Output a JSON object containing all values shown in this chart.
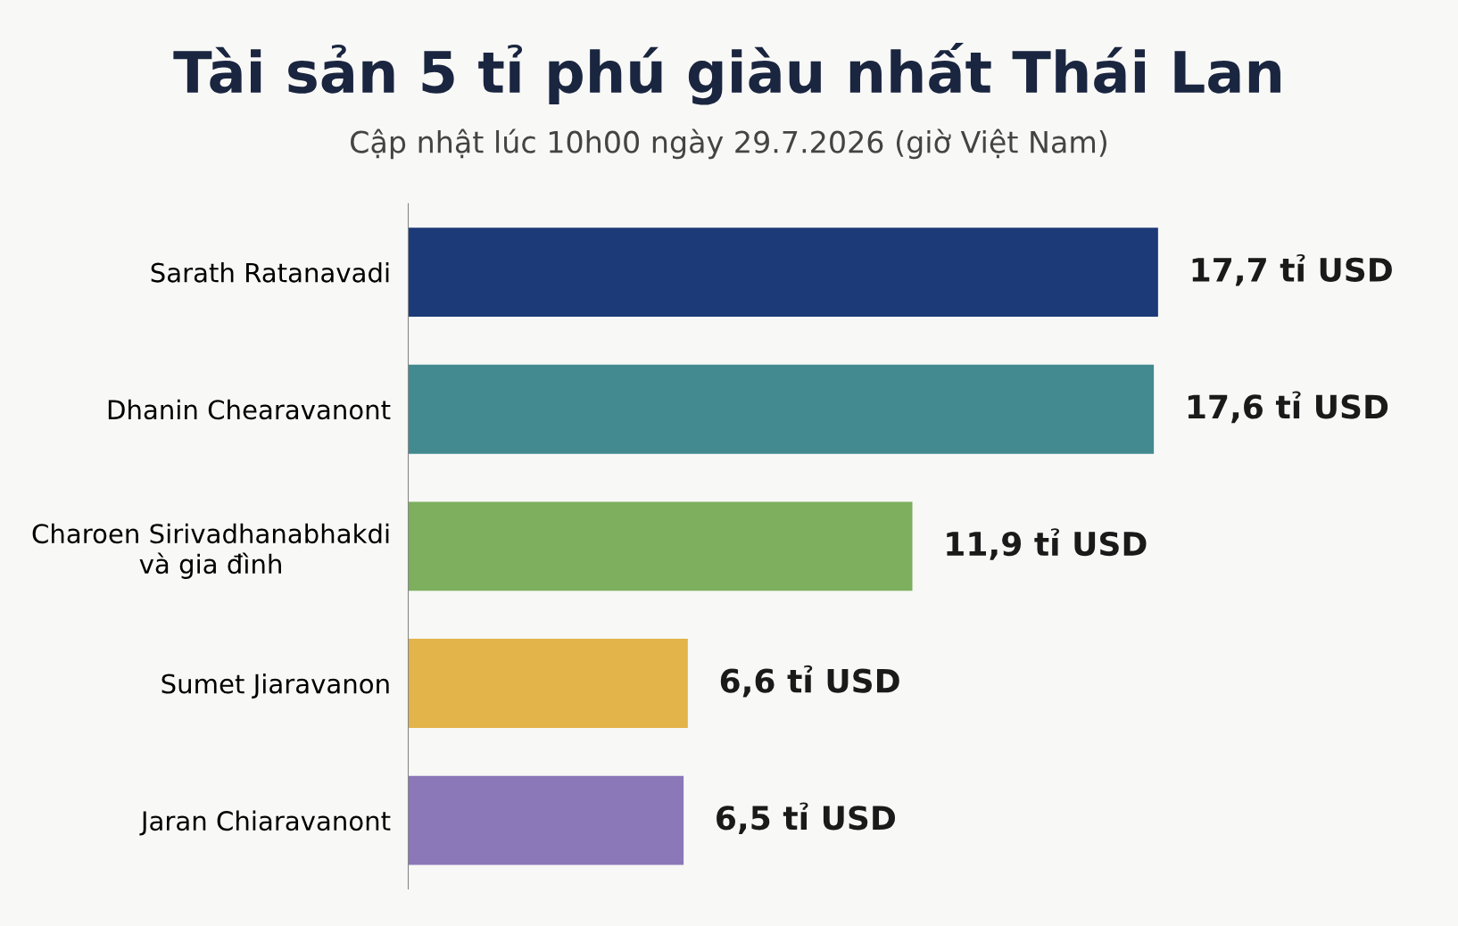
{
  "chart_data": {
    "type": "bar",
    "orientation": "horizontal",
    "title": "Tài sản 5 tỉ phú giàu nhất Thái Lan",
    "subtitle": "Cập nhật lúc 10h00 ngày 29.7.2026 (giờ Việt Nam)",
    "categories": [
      "Sarath Ratanavadi",
      "Dhanin Chearavanont",
      "Charoen Sirivadhanabhakdi\nvà gia đình",
      "Sumet Jiaravanon",
      "Jaran Chiaravanont"
    ],
    "values": [
      17.7,
      17.6,
      11.9,
      6.6,
      6.5
    ],
    "colors": [
      "#1c3a78",
      "#428a8f",
      "#7daf5e",
      "#e3b44a",
      "#8a78b8"
    ],
    "value_labels": [
      "17,7 tỉ USD",
      "17,6 tỉ USD",
      "11,9 tỉ USD",
      "6,6 tỉ USD",
      "6,5 tỉ USD"
    ],
    "tick_labels": "y",
    "grid": false,
    "legend": false
  }
}
